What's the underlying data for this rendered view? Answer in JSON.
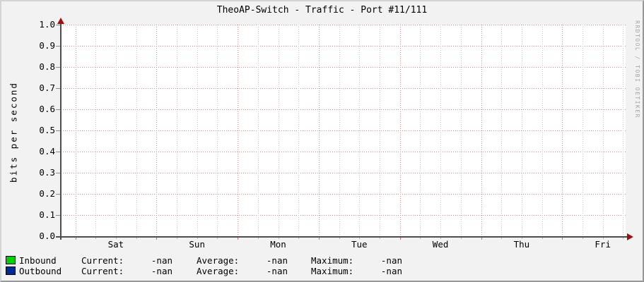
{
  "title": "TheoAP-Switch - Traffic - Port #11/111",
  "watermark": "RRDTOOL / TOBI OETIKER",
  "colors": {
    "background": "#f2f2f2",
    "canvas": "#ffffff",
    "major_grid": "#e58888",
    "minor_grid": "#c9c9c9",
    "axis": "#4d4d4d",
    "arrow": "#9e1010",
    "inbound": "#00CF00",
    "outbound": "#002A97"
  },
  "chart_data": {
    "type": "line",
    "title": "TheoAP-Switch - Traffic - Port #11/111",
    "xlabel": "",
    "ylabel": "bits per second",
    "ylim": [
      0.0,
      1.0
    ],
    "y_ticks": [
      "1.0",
      "0.9",
      "0.8",
      "0.7",
      "0.6",
      "0.5",
      "0.4",
      "0.3",
      "0.2",
      "0.1",
      "0.0"
    ],
    "categories": [
      "Sat",
      "Sun",
      "Mon",
      "Tue",
      "Wed",
      "Thu",
      "Fri"
    ],
    "grid": true,
    "legend_position": "bottom-left",
    "series": [
      {
        "name": "Inbound",
        "color": "#00CF00",
        "values": [],
        "stats": {
          "current": "-nan",
          "average": "-nan",
          "maximum": "-nan"
        }
      },
      {
        "name": "Outbound",
        "color": "#002A97",
        "values": [],
        "stats": {
          "current": "-nan",
          "average": "-nan",
          "maximum": "-nan"
        }
      }
    ],
    "legend_stat_labels": {
      "current": "Current:",
      "average": "Average:",
      "maximum": "Maximum:"
    }
  }
}
